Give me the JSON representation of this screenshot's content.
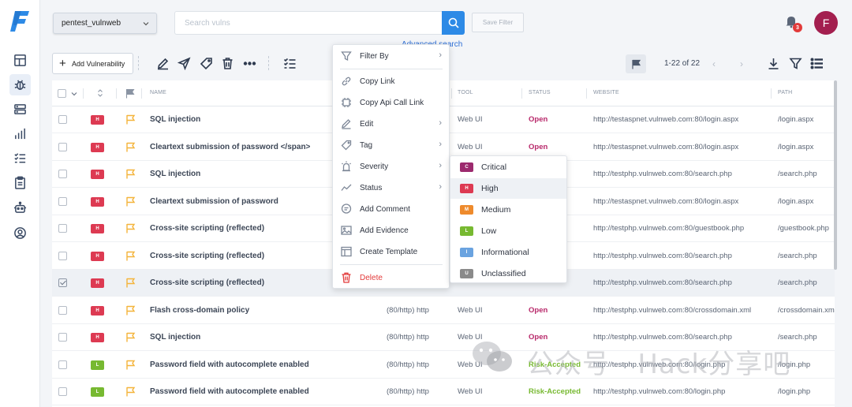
{
  "topbar": {
    "project": "pentest_vulnweb",
    "search_placeholder": "Search vulns",
    "save_filter": "Save Filter",
    "advanced_search": "Advanced search",
    "notifications": "3",
    "avatar_initial": "F"
  },
  "toolbar": {
    "add_vulnerability": "Add Vulnerability",
    "paging": "1-22 of 22"
  },
  "columns": {
    "name": "NAME",
    "tool": "TOOL",
    "status": "STATUS",
    "website": "WEBSITE",
    "path": "PATH"
  },
  "rows": [
    {
      "sev": "H",
      "name": "SQL injection",
      "service": "",
      "tool": "Web UI",
      "status": "Open",
      "website": "http://testaspnet.vulnweb.com:80/login.aspx",
      "path": "/login.aspx"
    },
    {
      "sev": "H",
      "name": "Cleartext submission of password </span>",
      "service": "",
      "tool": "Web UI",
      "status": "Open",
      "website": "http://testaspnet.vulnweb.com:80/login.aspx",
      "path": "/login.aspx"
    },
    {
      "sev": "H",
      "name": "SQL injection",
      "service": "",
      "tool": "",
      "status": "",
      "website": "http://testphp.vulnweb.com:80/search.php",
      "path": "/search.php"
    },
    {
      "sev": "H",
      "name": "Cleartext submission of password",
      "service": "",
      "tool": "",
      "status": "",
      "website": "http://testaspnet.vulnweb.com:80/login.aspx",
      "path": "/login.aspx"
    },
    {
      "sev": "H",
      "name": "Cross-site scripting (reflected)",
      "service": "",
      "tool": "",
      "status": "",
      "website": "http://testphp.vulnweb.com:80/guestbook.php",
      "path": "/guestbook.php"
    },
    {
      "sev": "H",
      "name": "Cross-site scripting (reflected)",
      "service": "",
      "tool": "",
      "status": "",
      "website": "http://testphp.vulnweb.com:80/search.php",
      "path": "/search.php"
    },
    {
      "sev": "H",
      "name": "Cross-site scripting (reflected)",
      "service": "",
      "tool": "",
      "status": "",
      "website": "http://testphp.vulnweb.com:80/search.php",
      "path": "/search.php"
    },
    {
      "sev": "H",
      "name": "Flash cross-domain policy",
      "service": "(80/http) http",
      "tool": "Web UI",
      "status": "Open",
      "website": "http://testphp.vulnweb.com:80/crossdomain.xml",
      "path": "/crossdomain.xml"
    },
    {
      "sev": "H",
      "name": "SQL injection",
      "service": "(80/http) http",
      "tool": "Web UI",
      "status": "Open",
      "website": "http://testphp.vulnweb.com:80/search.php",
      "path": "/search.php"
    },
    {
      "sev": "L",
      "name": "Password field with autocomplete enabled",
      "service": "(80/http) http",
      "tool": "Web UI",
      "status": "Risk-Accepted",
      "website": "http://testphp.vulnweb.com:80/login.php",
      "path": "/login.php"
    },
    {
      "sev": "L",
      "name": "Password field with autocomplete enabled",
      "service": "(80/http) http",
      "tool": "Web UI",
      "status": "Risk-Accepted",
      "website": "http://testphp.vulnweb.com:80/login.php",
      "path": "/login.php"
    }
  ],
  "context_menu": {
    "filter_by": "Filter By",
    "copy_link": "Copy Link",
    "copy_api_call_link": "Copy Api Call Link",
    "edit": "Edit",
    "tag": "Tag",
    "severity": "Severity",
    "status": "Status",
    "add_comment": "Add Comment",
    "add_evidence": "Add Evidence",
    "create_template": "Create Template",
    "delete": "Delete"
  },
  "severity_menu": [
    {
      "badge": "C",
      "label": "Critical",
      "color": "#9c2a6e"
    },
    {
      "badge": "H",
      "label": "High",
      "color": "#dd3a52"
    },
    {
      "badge": "M",
      "label": "Medium",
      "color": "#ee8a2c"
    },
    {
      "badge": "L",
      "label": "Low",
      "color": "#77b931"
    },
    {
      "badge": "I",
      "label": "Informational",
      "color": "#6aa3e0"
    },
    {
      "badge": "U",
      "label": "Unclassified",
      "color": "#8a8a8a"
    }
  ],
  "colors": {
    "high": "#dd3a52",
    "low": "#77b931",
    "open": "#b8286a",
    "risk_accepted": "#77b931",
    "accent": "#2d8ae6",
    "flag": "#f4b43b"
  },
  "watermark": "公众号 · Hack分享吧"
}
